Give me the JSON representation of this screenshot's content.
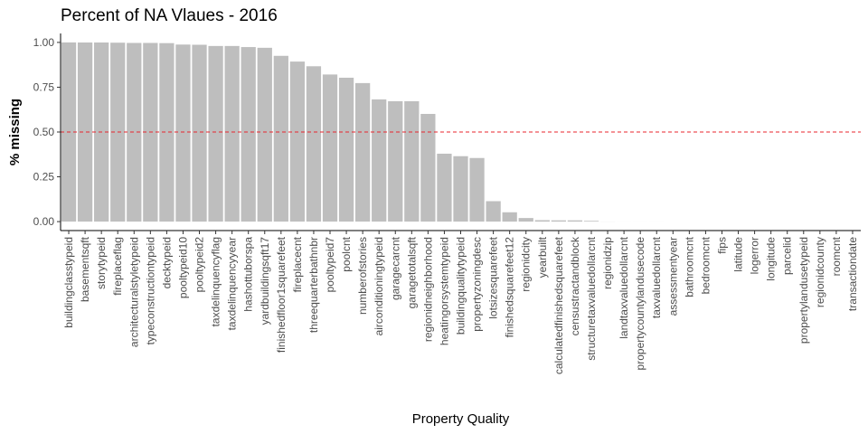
{
  "chart_data": {
    "type": "bar",
    "title": "Percent of NA Vlaues - 2016",
    "xlabel": "Property Quality",
    "ylabel": "% missing",
    "ylim": [
      -0.05,
      1.05
    ],
    "yticks": [
      "0.00",
      "0.25",
      "0.50",
      "0.75",
      "1.00"
    ],
    "ytick_values": [
      0,
      0.25,
      0.5,
      0.75,
      1.0
    ],
    "reference_line": {
      "y": 0.5,
      "style": "dashed",
      "color": "#e8262d"
    },
    "bar_color": "#bebebe",
    "grid": false,
    "categories": [
      "buildingclasstypeid",
      "basementsqft",
      "storytypeid",
      "fireplaceflag",
      "architecturalstyletypeid",
      "typeconstructiontypeid",
      "decktypeid",
      "pooltypeid10",
      "pooltypeid2",
      "taxdelinquencyflag",
      "taxdelinquencyyear",
      "hashottuborspa",
      "yardbuildingsqft17",
      "finishedfloor1squarefeet",
      "fireplacecnt",
      "threequarterbathnbr",
      "pooltypeid7",
      "poolcnt",
      "numberofstories",
      "airconditioningtypeid",
      "garagecarcnt",
      "garagetotalsqft",
      "regionidneighborhood",
      "heatingorsystemtypeid",
      "buildingqualitytypeid",
      "propertyzoningdesc",
      "lotsizesquarefeet",
      "finishedsquarefeet12",
      "regionidcity",
      "yearbuilt",
      "calculatedfinishedsquarefeet",
      "censustractandblock",
      "structuretaxvaluedollarcnt",
      "regionidzip",
      "landtaxvaluedollarcnt",
      "propertycountylandusecode",
      "taxvaluedollarcnt",
      "assessmentyear",
      "bathroomcnt",
      "bedroomcnt",
      "fips",
      "latitude",
      "logerror",
      "longitude",
      "parcelid",
      "propertylandusetypeid",
      "regionidcounty",
      "roomcnt",
      "transactiondate"
    ],
    "values": [
      0.9999,
      0.9995,
      0.9995,
      0.9985,
      0.997,
      0.997,
      0.996,
      0.988,
      0.987,
      0.98,
      0.98,
      0.974,
      0.97,
      0.925,
      0.893,
      0.867,
      0.821,
      0.803,
      0.773,
      0.682,
      0.672,
      0.672,
      0.601,
      0.379,
      0.365,
      0.355,
      0.114,
      0.052,
      0.02,
      0.008,
      0.007,
      0.007,
      0.004,
      0.0004,
      0.0001,
      0.0001,
      0.0001,
      0,
      0,
      0,
      0,
      0,
      0,
      0,
      0,
      0,
      0,
      0,
      0
    ]
  }
}
